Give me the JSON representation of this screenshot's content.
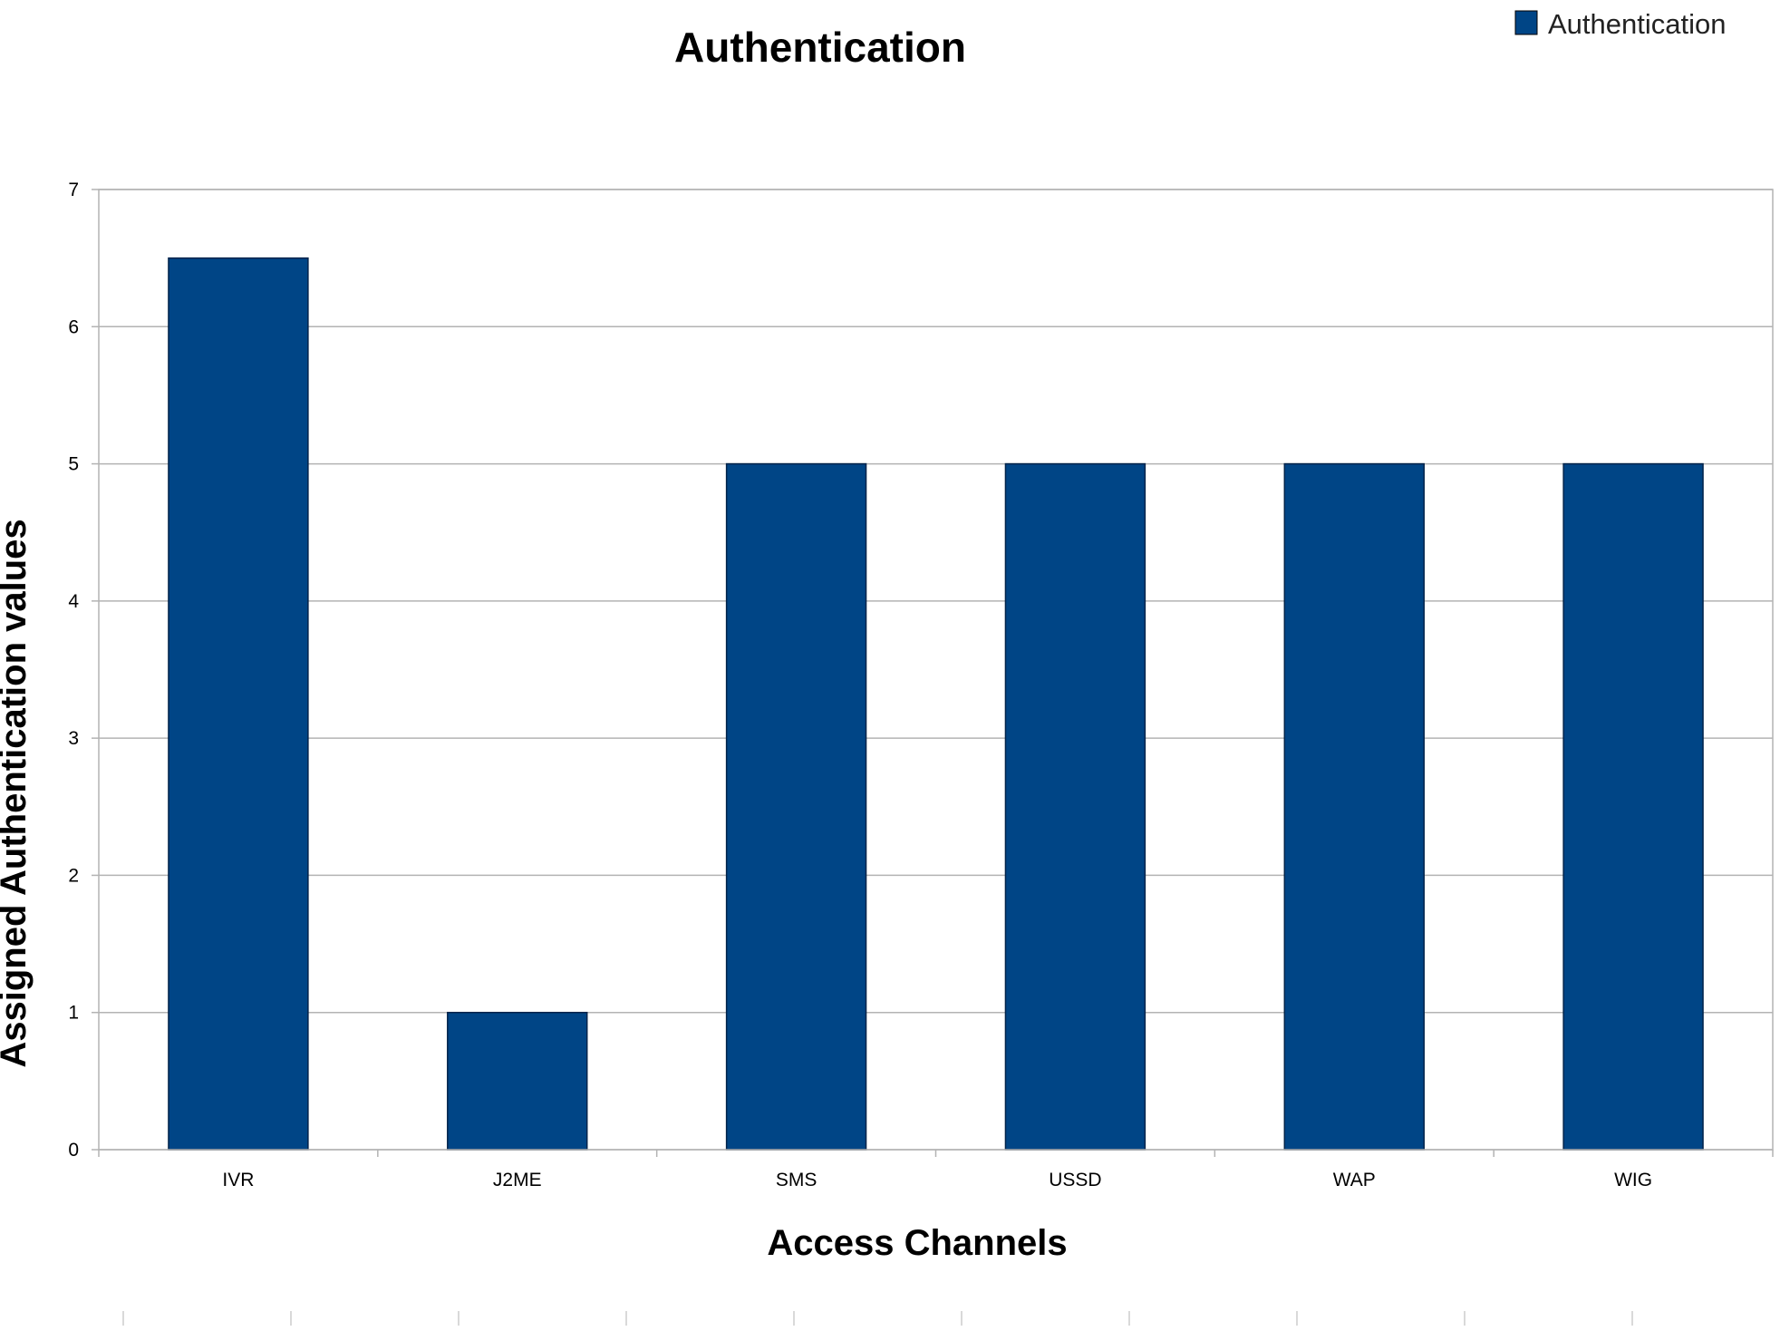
{
  "chart_data": {
    "type": "bar",
    "title": "Authentication",
    "xlabel": "Access Channels",
    "ylabel": "Assigned Authentication values",
    "categories": [
      "IVR",
      "J2ME",
      "SMS",
      "USSD",
      "WAP",
      "WIG"
    ],
    "series": [
      {
        "name": "Authentication",
        "values": [
          6.5,
          1,
          5,
          5,
          5,
          5
        ]
      }
    ],
    "ylim": [
      0,
      7
    ],
    "yticks": [
      "0",
      "1",
      "2",
      "3",
      "4",
      "5",
      "6",
      "7"
    ],
    "grid": true,
    "legend": "top-right",
    "colors": {
      "bar": "#004586",
      "grid": "#b3b3b3"
    }
  }
}
